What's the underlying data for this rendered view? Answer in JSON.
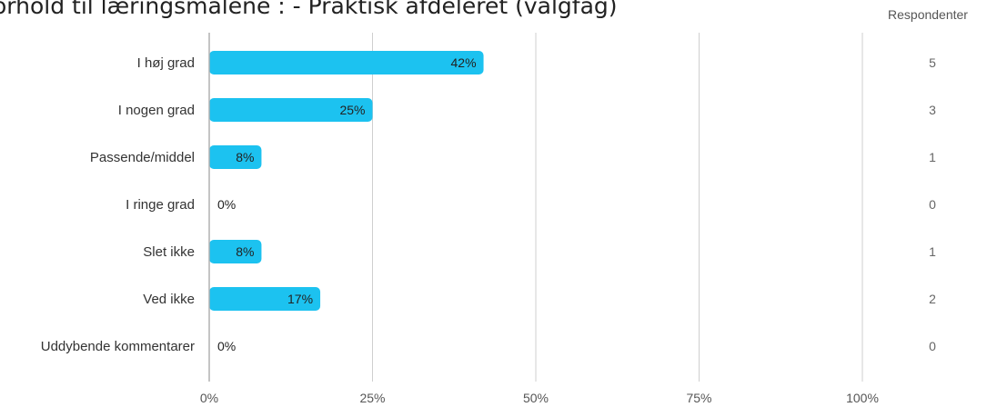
{
  "header": {
    "title": "orhold til læringsmålene : - Praktisk afdeleret (valgfag)",
    "respondents_label": "Respondenter"
  },
  "colors": {
    "bar": "#1cc2f0",
    "grid": "#cfcfcf",
    "axis": "#b0b0b0"
  },
  "chart_data": {
    "type": "bar",
    "orientation": "horizontal",
    "categories": [
      "I høj grad",
      "I nogen grad",
      "Passende/middel",
      "I ringe grad",
      "Slet ikke",
      "Ved ikke",
      "Uddybende kommentarer"
    ],
    "values": [
      42,
      25,
      8,
      0,
      8,
      17,
      0
    ],
    "value_labels": [
      "42%",
      "25%",
      "8%",
      "0%",
      "8%",
      "17%",
      "0%"
    ],
    "respondents": [
      5,
      3,
      1,
      0,
      1,
      2,
      0
    ],
    "xticks": [
      0,
      25,
      50,
      75,
      100
    ],
    "xtick_labels": [
      "0%",
      "25%",
      "50%",
      "75%",
      "100%"
    ],
    "xlim": [
      0,
      100
    ],
    "grid": true
  }
}
